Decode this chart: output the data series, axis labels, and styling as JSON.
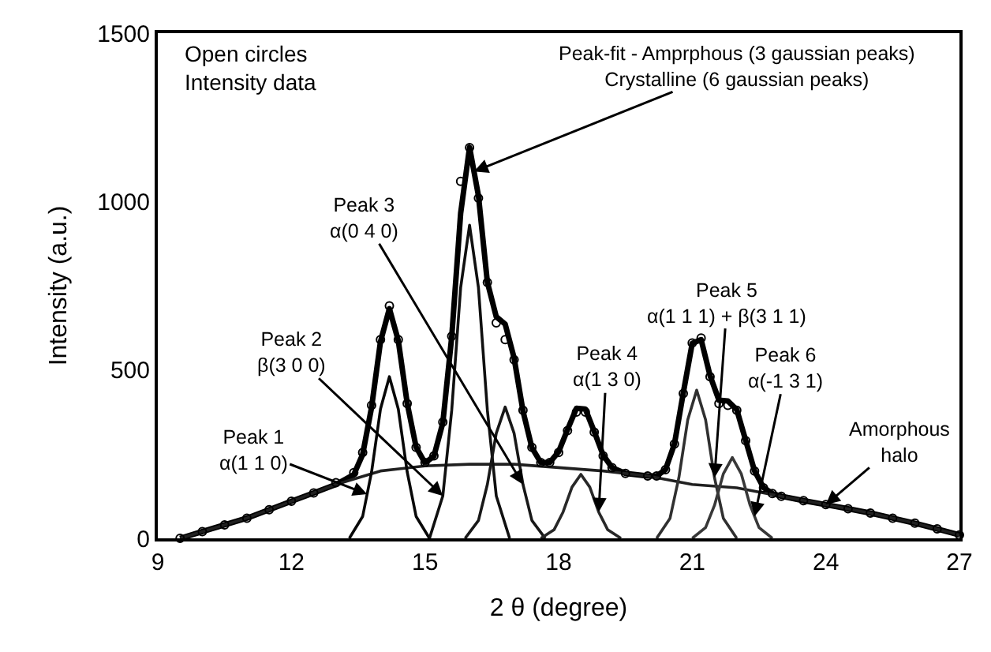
{
  "chart_data": {
    "type": "line",
    "xlabel": "2 θ (degree)",
    "ylabel": "Intensity (a.u.)",
    "xlim": [
      9,
      27
    ],
    "xticks": [
      9,
      12,
      15,
      18,
      21,
      24,
      27
    ],
    "ylim": [
      0,
      1500
    ],
    "yticks": [
      0,
      500,
      1000,
      1500
    ],
    "series": [
      {
        "color": "#000000",
        "x": [
          9.5,
          10,
          10.5,
          11,
          11.5,
          12,
          12.5,
          13,
          13.4,
          13.6,
          13.8,
          14.0,
          14.2,
          14.4,
          14.6,
          14.8,
          15.0,
          15.2,
          15.4,
          15.6,
          15.8,
          16.0,
          16.2,
          16.4,
          16.6,
          16.8,
          17.0,
          17.2,
          17.4,
          17.6,
          17.8,
          18.0,
          18.2,
          18.4,
          18.6,
          18.8,
          19.0,
          19.2,
          19.5,
          20.0,
          20.2,
          20.4,
          20.6,
          20.8,
          21.0,
          21.2,
          21.4,
          21.6,
          21.8,
          22.0,
          22.2,
          22.4,
          22.6,
          22.8,
          23.0,
          23.5,
          24.0,
          24.5,
          25.0,
          25.5,
          26.0,
          26.5,
          27.0
        ],
        "values": [
          0,
          20,
          40,
          60,
          85,
          110,
          135,
          160,
          189,
          249,
          389,
          584,
          682,
          587,
          401,
          271,
          224,
          244,
          343,
          599,
          965,
          1161,
          1017,
          761,
          658,
          636,
          536,
          378,
          269,
          225,
          225,
          257,
          323,
          386,
          384,
          317,
          247,
          210,
          193,
          185,
          185,
          204,
          280,
          432,
          579,
          590,
          483,
          410,
          408,
          382,
          291,
          200,
          151,
          133,
          125,
          112,
          100,
          88,
          75,
          60,
          45,
          28,
          10
        ]
      },
      {
        "color": "#202020",
        "x": [
          9.5,
          10,
          11,
          12,
          13,
          14,
          15,
          16,
          17,
          18,
          19,
          20,
          21,
          22,
          23,
          24,
          25,
          26,
          27
        ],
        "values": [
          0,
          20,
          60,
          110,
          160,
          200,
          215,
          220,
          220,
          210,
          200,
          185,
          160,
          150,
          125,
          100,
          75,
          45,
          10
        ]
      },
      {
        "color": "#080808",
        "x": [
          13.3,
          13.6,
          13.8,
          14.0,
          14.2,
          14.4,
          14.6,
          14.8,
          15.1
        ],
        "values": [
          0,
          65,
          197,
          384,
          480,
          384,
          197,
          65,
          0
        ]
      },
      {
        "color": "#101010",
        "x": [
          15.1,
          15.4,
          15.6,
          15.8,
          16.0,
          16.2,
          16.4,
          16.6,
          16.9
        ],
        "values": [
          0,
          126,
          381,
          744,
          930,
          744,
          381,
          126,
          0
        ]
      },
      {
        "color": "#181818",
        "x": [
          15.9,
          16.2,
          16.4,
          16.6,
          16.8,
          17.0,
          17.2,
          17.4,
          17.7
        ],
        "values": [
          0,
          53,
          160,
          312,
          390,
          312,
          160,
          53,
          0
        ]
      },
      {
        "color": "#282828",
        "x": [
          17.6,
          17.9,
          18.1,
          18.3,
          18.5,
          18.7,
          18.9,
          19.1,
          19.4
        ],
        "values": [
          0,
          26,
          78,
          152,
          190,
          152,
          78,
          26,
          0
        ]
      },
      {
        "color": "#303030",
        "x": [
          20.2,
          20.5,
          20.7,
          20.9,
          21.1,
          21.3,
          21.5,
          21.7,
          22.0
        ],
        "values": [
          0,
          59,
          180,
          352,
          440,
          352,
          180,
          59,
          0
        ]
      },
      {
        "color": "#383838",
        "x": [
          21.0,
          21.3,
          21.5,
          21.7,
          21.9,
          22.1,
          22.3,
          22.5,
          22.8
        ],
        "values": [
          0,
          32,
          98,
          192,
          240,
          192,
          98,
          32,
          0
        ]
      },
      {
        "type": "scatter",
        "marker": "circle",
        "color": "#000000",
        "x": [
          9.5,
          10,
          10.5,
          11,
          11.5,
          12,
          12.5,
          13,
          13.4,
          13.6,
          13.8,
          14.0,
          14.2,
          14.4,
          14.6,
          14.8,
          15.0,
          15.2,
          15.4,
          15.6,
          15.8,
          16.0,
          16.2,
          16.4,
          16.6,
          16.8,
          17.0,
          17.2,
          17.4,
          17.6,
          17.8,
          18.0,
          18.2,
          18.4,
          18.6,
          18.8,
          19.0,
          19.2,
          19.5,
          20.0,
          20.2,
          20.4,
          20.6,
          20.8,
          21.0,
          21.2,
          21.4,
          21.6,
          21.8,
          22.0,
          22.2,
          22.4,
          22.6,
          22.8,
          23.0,
          23.5,
          24.0,
          24.5,
          25.0,
          25.5,
          26.0,
          26.5,
          27.0
        ],
        "values": [
          0,
          20,
          40,
          60,
          85,
          110,
          135,
          165,
          195,
          255,
          395,
          590,
          690,
          590,
          400,
          270,
          225,
          245,
          345,
          600,
          1060,
          1160,
          1010,
          760,
          640,
          590,
          530,
          380,
          270,
          225,
          225,
          255,
          320,
          375,
          375,
          315,
          245,
          210,
          193,
          185,
          185,
          204,
          280,
          430,
          580,
          595,
          480,
          400,
          395,
          380,
          290,
          200,
          150,
          133,
          125,
          112,
          100,
          88,
          75,
          60,
          45,
          28,
          10
        ]
      }
    ],
    "annotations": [
      "Open circles\nIntensity data",
      {
        "text": "Peak-fit - Amprphous (3 gaussian peaks)\nCrystalline (6 gaussian peaks)",
        "x": 16.1,
        "y": 1089
      },
      {
        "text": "Peak 1\nα(1 1 0)",
        "x": 13.7,
        "y": 131
      },
      {
        "text": "Peak 2\nβ(3 0 0)",
        "x": 15.4,
        "y": 126
      },
      {
        "text": "Peak 3\nα(0 4 0)",
        "x": 17.2,
        "y": 160
      },
      {
        "text": "Peak 4\nα(1 3 0)",
        "x": 18.9,
        "y": 78
      },
      {
        "text": "Peak 5\nα(1 1 1) + β(3 1 1)",
        "x": 21.5,
        "y": 180
      },
      {
        "text": "Peak 6\nα(-1 3 1)",
        "x": 22.4,
        "y": 65
      },
      {
        "text": "Amorphous\nhalo",
        "x": 24,
        "y": 100
      }
    ]
  }
}
